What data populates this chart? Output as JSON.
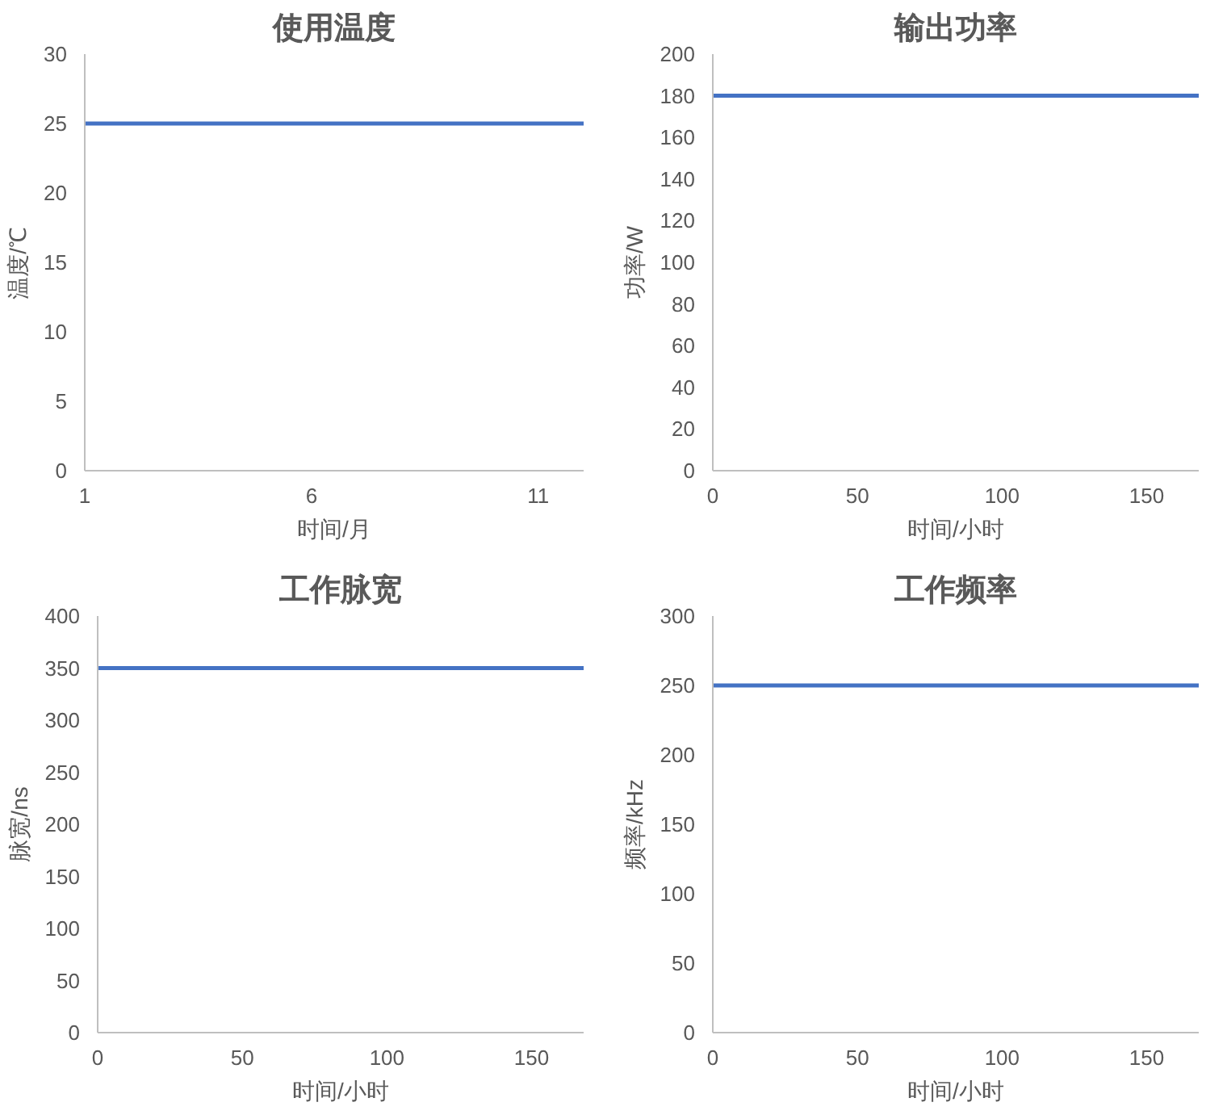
{
  "chart_data": [
    {
      "type": "line",
      "title": "使用温度",
      "xlabel": "时间/月",
      "ylabel": "温度/℃",
      "x": [
        1,
        2,
        3,
        4,
        5,
        6,
        7,
        8,
        9,
        10,
        11,
        12
      ],
      "series": [
        {
          "color": "#4472c4",
          "values": [
            25,
            25,
            25,
            25,
            25,
            25,
            25,
            25,
            25,
            25,
            25,
            25
          ]
        }
      ],
      "xlim": [
        1,
        12
      ],
      "xticks": [
        1,
        6,
        11
      ],
      "ylim": [
        0,
        30
      ],
      "yticks": [
        0,
        5,
        10,
        15,
        20,
        25,
        30
      ],
      "grid": false
    },
    {
      "type": "line",
      "title": "输出功率",
      "xlabel": "时间/小时",
      "ylabel": "功率/W",
      "x": [
        0,
        168
      ],
      "series": [
        {
          "color": "#4472c4",
          "values": [
            180,
            180
          ]
        }
      ],
      "xlim": [
        0,
        168
      ],
      "xticks": [
        0,
        50,
        100,
        150
      ],
      "ylim": [
        0,
        200
      ],
      "yticks": [
        0,
        20,
        40,
        60,
        80,
        100,
        120,
        140,
        160,
        180,
        200
      ],
      "grid": false
    },
    {
      "type": "line",
      "title": "工作脉宽",
      "xlabel": "时间/小时",
      "ylabel": "脉宽/ns",
      "x": [
        0,
        168
      ],
      "series": [
        {
          "color": "#4472c4",
          "values": [
            350,
            350
          ]
        }
      ],
      "xlim": [
        0,
        168
      ],
      "xticks": [
        0,
        50,
        100,
        150
      ],
      "ylim": [
        0,
        400
      ],
      "yticks": [
        0,
        50,
        100,
        150,
        200,
        250,
        300,
        350,
        400
      ],
      "grid": false
    },
    {
      "type": "line",
      "title": "工作频率",
      "xlabel": "时间/小时",
      "ylabel": "频率/kHz",
      "x": [
        0,
        168
      ],
      "series": [
        {
          "color": "#4472c4",
          "values": [
            250,
            250
          ]
        }
      ],
      "xlim": [
        0,
        168
      ],
      "xticks": [
        0,
        50,
        100,
        150
      ],
      "ylim": [
        0,
        300
      ],
      "yticks": [
        0,
        50,
        100,
        150,
        200,
        250,
        300
      ],
      "grid": false
    }
  ]
}
